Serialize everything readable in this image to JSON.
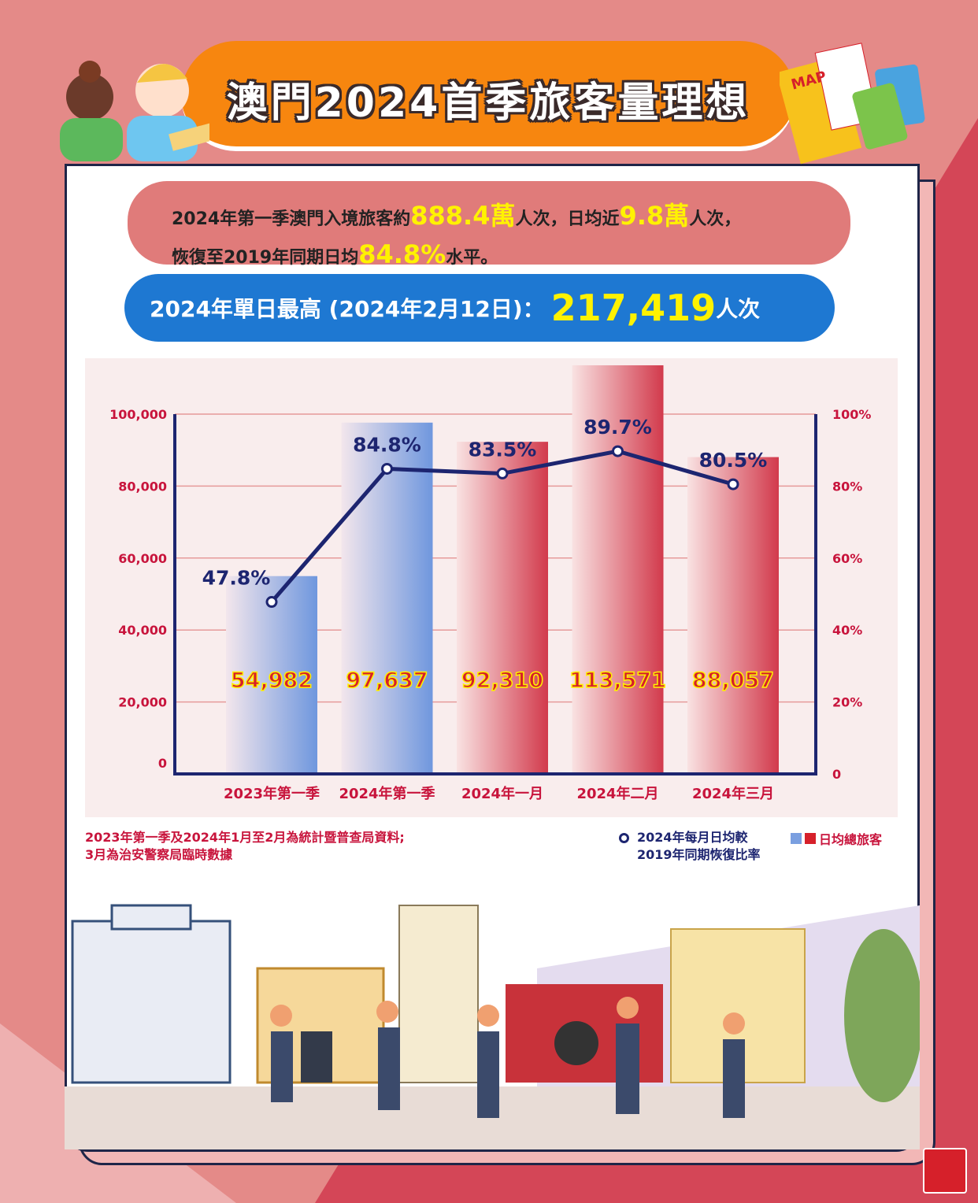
{
  "title": "澳門2024首季旅客量理想",
  "summary": {
    "line1_a": "2024年第一季澳門入境旅客約",
    "line1_hl1": "888.4萬",
    "line1_b": "人次，日均近",
    "line1_hl2": "9.8萬",
    "line1_c": "人次，",
    "line2_a": "恢復至2019年同期日均",
    "line2_hl": "84.8%",
    "line2_b": "水平。"
  },
  "peak": {
    "label": "2024年單日最高 (2024年2月12日)：",
    "value": "217,419",
    "unit": "人次"
  },
  "notes": {
    "line1": "2023年第一季及2024年1月至2月為統計暨普查局資料;",
    "line2": "3月為治安警察局臨時數據"
  },
  "legend": {
    "line_label_1": "2024年每月日均較",
    "line_label_2": "2019年同期恢復比率",
    "bar_label": "日均總旅客"
  },
  "colors": {
    "blue_bar": "#7a9fe0",
    "red_bar": "#d23a4c",
    "line": "#1d2570",
    "label": "#c8143c",
    "value_fill": "#d6202a",
    "value_outline": "#fff200"
  },
  "chart_data": {
    "type": "bar+line",
    "categories": [
      "2023年第一季",
      "2024年第一季",
      "2024年一月",
      "2024年二月",
      "2024年三月"
    ],
    "series": [
      {
        "name": "日均總旅客",
        "type": "bar",
        "axis": "left",
        "values": [
          54982,
          97637,
          92310,
          113571,
          88057
        ],
        "value_labels": [
          "54,982",
          "97,637",
          "92,310",
          "113,571",
          "88,057"
        ],
        "bar_colors": [
          "blue",
          "blue",
          "red",
          "red",
          "red"
        ]
      },
      {
        "name": "2024年每月日均較2019年同期恢復比率",
        "type": "line",
        "axis": "right",
        "values": [
          47.8,
          84.8,
          83.5,
          89.7,
          80.5
        ],
        "value_labels": [
          "47.8%",
          "84.8%",
          "83.5%",
          "89.7%",
          "80.5%"
        ]
      }
    ],
    "left_axis": {
      "ylim": [
        0,
        100000
      ],
      "ticks": [
        "0",
        "20,000",
        "40,000",
        "60,000",
        "80,000",
        "100,000"
      ]
    },
    "right_axis": {
      "ylim": [
        0,
        100
      ],
      "ticks": [
        "0",
        "20%",
        "40%",
        "60%",
        "80%",
        "100%"
      ]
    },
    "grid": true,
    "legend_position": "bottom-right"
  }
}
